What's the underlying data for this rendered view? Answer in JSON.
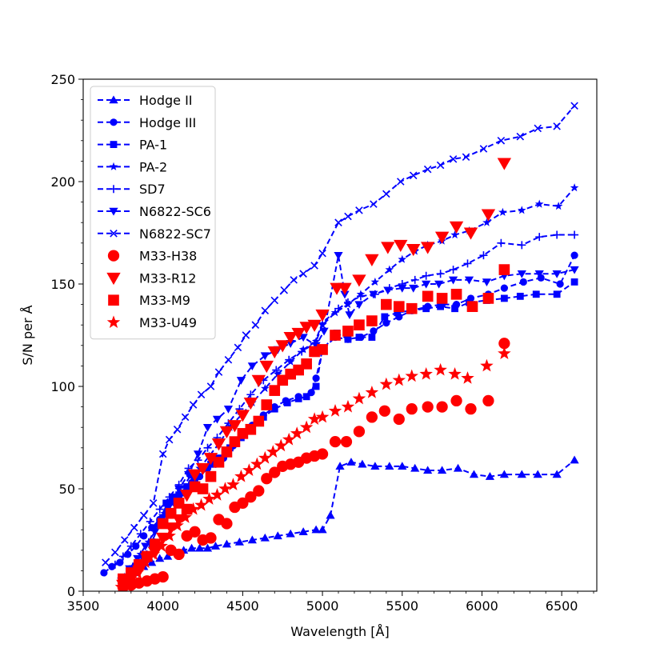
{
  "chart_data": {
    "type": "scatter",
    "title": "",
    "xlabel": "Wavelength [Å]",
    "ylabel": "S/N per Å",
    "xlim": [
      3500,
      6720
    ],
    "ylim": [
      0,
      250
    ],
    "xticks": [
      3500,
      4000,
      4500,
      5000,
      5500,
      6000,
      6500
    ],
    "yticks": [
      0,
      50,
      100,
      150,
      200,
      250
    ],
    "legend_position": "top-left",
    "series": [
      {
        "name": "Hodge II",
        "color": "#0000ff",
        "marker": "triangle-up",
        "line": "dashed",
        "x": [
          3780,
          3830,
          3880,
          3930,
          3980,
          4030,
          4080,
          4130,
          4180,
          4230,
          4280,
          4330,
          4400,
          4480,
          4560,
          4640,
          4720,
          4800,
          4880,
          4960,
          5000,
          5050,
          5110,
          5180,
          5250,
          5330,
          5420,
          5500,
          5580,
          5660,
          5750,
          5850,
          5950,
          6050,
          6140,
          6250,
          6350,
          6470,
          6580
        ],
        "y": [
          6,
          9,
          12,
          14,
          16,
          17,
          19,
          20,
          21,
          21,
          21,
          22,
          23,
          24,
          25,
          26,
          27,
          28,
          29,
          30,
          30,
          37,
          61,
          63,
          62,
          61,
          61,
          61,
          60,
          59,
          59,
          60,
          57,
          56,
          57,
          57,
          57,
          57,
          64
        ]
      },
      {
        "name": "Hodge III",
        "color": "#0000ff",
        "marker": "circle",
        "line": "dashed",
        "x": [
          3630,
          3680,
          3730,
          3780,
          3830,
          3880,
          3930,
          3980,
          4030,
          4080,
          4130,
          4180,
          4230,
          4280,
          4330,
          4380,
          4440,
          4500,
          4560,
          4630,
          4700,
          4770,
          4850,
          4930,
          4960,
          5000,
          5080,
          5160,
          5240,
          5320,
          5400,
          5480,
          5560,
          5660,
          5750,
          5840,
          5930,
          6040,
          6140,
          6260,
          6370,
          6490,
          6580
        ],
        "y": [
          9,
          12,
          14,
          18,
          22,
          27,
          31,
          35,
          40,
          43,
          48,
          53,
          56,
          60,
          62,
          65,
          71,
          76,
          81,
          86,
          90,
          93,
          95,
          97,
          104,
          118,
          124,
          123,
          124,
          127,
          131,
          134,
          137,
          139,
          140,
          140,
          143,
          145,
          148,
          151,
          153,
          150,
          164
        ]
      },
      {
        "name": "PA-1",
        "color": "#0000ff",
        "marker": "square",
        "line": "dashed",
        "x": [
          3830,
          3880,
          3930,
          3980,
          4020,
          4060,
          4100,
          4150,
          4200,
          4250,
          4300,
          4350,
          4420,
          4490,
          4560,
          4630,
          4700,
          4780,
          4850,
          4900,
          4960,
          5000,
          5090,
          5160,
          5230,
          5310,
          5390,
          5470,
          5550,
          5650,
          5740,
          5830,
          5920,
          6030,
          6140,
          6240,
          6340,
          6470,
          6580
        ],
        "y": [
          10,
          17,
          24,
          33,
          43,
          46,
          47,
          51,
          55,
          60,
          62,
          65,
          70,
          75,
          80,
          85,
          89,
          92,
          94,
          95,
          100,
          118,
          126,
          123,
          124,
          124,
          134,
          136,
          137,
          138,
          139,
          138,
          141,
          142,
          143,
          144,
          145,
          145,
          151
        ]
      },
      {
        "name": "PA-2",
        "color": "#0000ff",
        "marker": "star",
        "line": "dashed",
        "x": [
          3760,
          3810,
          3860,
          3910,
          3960,
          4010,
          4060,
          4110,
          4170,
          4230,
          4290,
          4350,
          4420,
          4490,
          4560,
          4640,
          4720,
          4800,
          4880,
          4960,
          5000,
          5080,
          5160,
          5240,
          5330,
          5420,
          5500,
          5580,
          5660,
          5750,
          5830,
          5920,
          6030,
          6130,
          6250,
          6360,
          6480,
          6580
        ],
        "y": [
          7,
          12,
          18,
          24,
          32,
          38,
          43,
          49,
          56,
          60,
          66,
          72,
          80,
          86,
          92,
          99,
          106,
          112,
          118,
          122,
          130,
          136,
          140,
          145,
          151,
          157,
          162,
          166,
          169,
          171,
          174,
          176,
          180,
          185,
          186,
          189,
          188,
          197
        ]
      },
      {
        "name": "SD7",
        "color": "#0000ff",
        "marker": "plus",
        "line": "dashed",
        "x": [
          3700,
          3750,
          3800,
          3860,
          3920,
          3980,
          4040,
          4100,
          4160,
          4220,
          4280,
          4340,
          4410,
          4480,
          4550,
          4630,
          4710,
          4790,
          4870,
          4950,
          5000,
          5100,
          5160,
          5240,
          5330,
          5420,
          5500,
          5580,
          5650,
          5740,
          5820,
          5910,
          6010,
          6120,
          6250,
          6360,
          6470,
          6580
        ],
        "y": [
          13,
          17,
          22,
          28,
          34,
          40,
          46,
          52,
          60,
          64,
          70,
          75,
          82,
          89,
          96,
          103,
          108,
          113,
          117,
          121,
          131,
          138,
          141,
          144,
          145,
          148,
          150,
          152,
          154,
          155,
          157,
          160,
          164,
          170,
          169,
          173,
          174,
          174
        ]
      },
      {
        "name": "N6822-SC6",
        "color": "#0000ff",
        "marker": "triangle-down",
        "line": "dashed",
        "x": [
          3740,
          3790,
          3840,
          3890,
          3950,
          4000,
          4050,
          4100,
          4160,
          4220,
          4280,
          4340,
          4410,
          4490,
          4560,
          4640,
          4720,
          4800,
          4880,
          4960,
          5010,
          5100,
          5140,
          5170,
          5230,
          5320,
          5410,
          5500,
          5570,
          5650,
          5730,
          5820,
          5920,
          6030,
          6140,
          6250,
          6360,
          6470,
          6580
        ],
        "y": [
          5,
          11,
          16,
          22,
          29,
          36,
          43,
          50,
          57,
          67,
          80,
          84,
          89,
          103,
          110,
          115,
          118,
          121,
          124,
          120,
          127,
          164,
          145,
          135,
          140,
          145,
          147,
          148,
          148,
          150,
          150,
          152,
          152,
          151,
          154,
          155,
          155,
          155,
          157
        ]
      },
      {
        "name": "N6822-SC7",
        "color": "#0000ff",
        "marker": "x",
        "line": "dashed",
        "x": [
          3640,
          3700,
          3760,
          3820,
          3880,
          3940,
          4000,
          4040,
          4090,
          4140,
          4190,
          4240,
          4300,
          4350,
          4410,
          4470,
          4520,
          4580,
          4640,
          4700,
          4760,
          4820,
          4880,
          4950,
          5000,
          5100,
          5160,
          5230,
          5320,
          5400,
          5490,
          5570,
          5660,
          5740,
          5820,
          5900,
          6010,
          6120,
          6240,
          6350,
          6470,
          6580
        ],
        "y": [
          14,
          19,
          25,
          31,
          37,
          43,
          67,
          74,
          79,
          85,
          91,
          96,
          100,
          107,
          113,
          119,
          125,
          130,
          137,
          142,
          147,
          152,
          155,
          159,
          165,
          180,
          183,
          186,
          189,
          194,
          200,
          203,
          206,
          208,
          211,
          212,
          216,
          220,
          222,
          226,
          227,
          237
        ]
      },
      {
        "name": "M33-H38",
        "color": "#ff0000",
        "marker": "circle",
        "line": "none",
        "x": [
          3750,
          3800,
          3850,
          3900,
          3950,
          4000,
          4050,
          4100,
          4150,
          4200,
          4250,
          4300,
          4350,
          4400,
          4450,
          4500,
          4550,
          4600,
          4650,
          4700,
          4750,
          4800,
          4850,
          4900,
          4950,
          5000,
          5080,
          5150,
          5230,
          5310,
          5390,
          5480,
          5560,
          5660,
          5750,
          5840,
          5930,
          6040,
          6140
        ],
        "y": [
          2,
          3,
          4,
          5,
          6,
          7,
          20,
          18,
          27,
          29,
          25,
          26,
          35,
          33,
          41,
          43,
          46,
          49,
          55,
          58,
          61,
          62,
          63,
          65,
          66,
          67,
          73,
          73,
          78,
          85,
          88,
          84,
          89,
          90,
          90,
          93,
          89,
          93,
          121
        ]
      },
      {
        "name": "M33-R12",
        "color": "#ff0000",
        "marker": "triangle-down",
        "line": "none",
        "x": [
          3750,
          3800,
          3850,
          3900,
          3950,
          4000,
          4050,
          4100,
          4150,
          4200,
          4250,
          4300,
          4350,
          4400,
          4450,
          4500,
          4550,
          4600,
          4650,
          4700,
          4750,
          4800,
          4850,
          4900,
          4950,
          5000,
          5090,
          5140,
          5230,
          5310,
          5410,
          5490,
          5570,
          5660,
          5750,
          5840,
          5930,
          6040,
          6140
        ],
        "y": [
          3,
          6,
          10,
          16,
          19,
          26,
          31,
          35,
          47,
          57,
          60,
          65,
          72,
          78,
          81,
          86,
          92,
          103,
          110,
          117,
          120,
          124,
          126,
          129,
          130,
          135,
          148,
          148,
          152,
          162,
          168,
          169,
          167,
          168,
          173,
          178,
          175,
          184,
          209
        ]
      },
      {
        "name": "M33-M9",
        "color": "#ff0000",
        "marker": "square",
        "line": "none",
        "x": [
          3750,
          3800,
          3850,
          3900,
          3950,
          4000,
          4050,
          4100,
          4150,
          4200,
          4250,
          4300,
          4350,
          4400,
          4450,
          4500,
          4550,
          4600,
          4650,
          4700,
          4750,
          4800,
          4850,
          4900,
          4950,
          5000,
          5080,
          5160,
          5230,
          5310,
          5400,
          5480,
          5560,
          5660,
          5750,
          5840,
          5940,
          6040,
          6140
        ],
        "y": [
          6,
          9,
          13,
          17,
          23,
          33,
          38,
          43,
          40,
          51,
          50,
          56,
          63,
          68,
          73,
          77,
          79,
          83,
          91,
          98,
          103,
          106,
          108,
          111,
          117,
          118,
          125,
          127,
          130,
          132,
          140,
          139,
          138,
          144,
          143,
          145,
          139,
          143,
          157
        ]
      },
      {
        "name": "M33-U49",
        "color": "#ff0000",
        "marker": "star",
        "line": "none",
        "x": [
          3740,
          3790,
          3840,
          3890,
          3940,
          3990,
          4040,
          4090,
          4140,
          4190,
          4240,
          4290,
          4340,
          4390,
          4440,
          4490,
          4540,
          4590,
          4640,
          4690,
          4740,
          4790,
          4840,
          4900,
          4950,
          5000,
          5080,
          5160,
          5230,
          5310,
          5400,
          5480,
          5560,
          5650,
          5740,
          5830,
          5910,
          6030,
          6140
        ],
        "y": [
          2,
          5,
          9,
          14,
          18,
          22,
          27,
          32,
          36,
          40,
          42,
          45,
          47,
          50,
          52,
          56,
          59,
          62,
          65,
          68,
          71,
          74,
          77,
          80,
          84,
          85,
          88,
          90,
          94,
          97,
          101,
          103,
          105,
          106,
          108,
          106,
          104,
          110,
          116
        ]
      }
    ]
  }
}
